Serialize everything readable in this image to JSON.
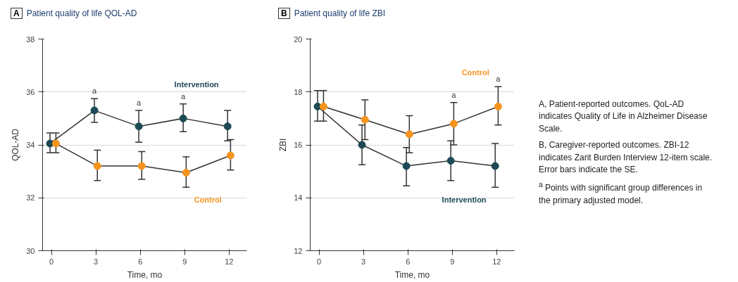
{
  "chart_data": [
    {
      "type": "line",
      "title": "Patient quality of life QOL-AD",
      "xlabel": "Time, mo",
      "ylabel": "QOL-AD",
      "xlim": [
        -0.6,
        13.2
      ],
      "xticks": [
        0,
        3,
        6,
        9,
        12
      ],
      "ylim": [
        30,
        38
      ],
      "yticks": [
        30,
        32,
        34,
        36,
        38
      ],
      "grid": "y",
      "marker": "circle",
      "annotations": [
        "A",
        {
          "text": "a",
          "x": 2.9,
          "y": 35.75
        },
        {
          "text": "a",
          "x": 5.9,
          "y": 35.3
        },
        {
          "text": "a",
          "x": 8.9,
          "y": 35.55
        }
      ],
      "series": [
        {
          "name": "Intervention",
          "color": "#1d4a55",
          "x": [
            -0.1,
            2.9,
            5.9,
            8.9,
            11.9
          ],
          "values": [
            34.05,
            35.3,
            34.7,
            35.0,
            34.7
          ],
          "errors": [
            [
              33.7,
              34.45
            ],
            [
              34.85,
              35.75
            ],
            [
              34.1,
              35.3
            ],
            [
              34.5,
              35.55
            ],
            [
              34.15,
              35.3
            ]
          ]
        },
        {
          "name": "Control",
          "color": "#f7941d",
          "x": [
            0.3,
            3.1,
            6.1,
            9.1,
            12.1
          ],
          "values": [
            34.05,
            33.2,
            33.2,
            32.95,
            33.6
          ],
          "errors": [
            [
              33.7,
              34.45
            ],
            [
              32.65,
              33.8
            ],
            [
              32.7,
              33.75
            ],
            [
              32.4,
              33.55
            ],
            [
              33.05,
              34.2
            ]
          ]
        }
      ]
    },
    {
      "type": "line",
      "title": "Patient quality of life ZBI",
      "xlabel": "Time, mo",
      "ylabel": "ZBI",
      "xlim": [
        -0.6,
        13.2
      ],
      "xticks": [
        0,
        3,
        6,
        9,
        12
      ],
      "ylim": [
        12,
        20
      ],
      "yticks": [
        12,
        14,
        16,
        18,
        20
      ],
      "grid": "y",
      "marker": "circle",
      "annotations": [
        "B",
        {
          "text": "a",
          "x": 9.1,
          "y": 17.6
        },
        {
          "text": "a",
          "x": 12.1,
          "y": 18.2
        }
      ],
      "series": [
        {
          "name": "Intervention",
          "color": "#1d4a55",
          "x": [
            -0.1,
            2.9,
            5.9,
            8.9,
            11.9
          ],
          "values": [
            17.45,
            16.0,
            15.2,
            15.4,
            15.2
          ],
          "errors": [
            [
              16.9,
              18.05
            ],
            [
              15.25,
              16.75
            ],
            [
              14.45,
              15.9
            ],
            [
              14.65,
              16.15
            ],
            [
              14.4,
              16.05
            ]
          ]
        },
        {
          "name": "Control",
          "color": "#f7941d",
          "x": [
            0.3,
            3.1,
            6.1,
            9.1,
            12.1
          ],
          "values": [
            17.45,
            16.95,
            16.4,
            16.8,
            17.45
          ],
          "errors": [
            [
              16.9,
              18.05
            ],
            [
              16.2,
              17.7
            ],
            [
              15.7,
              17.1
            ],
            [
              16.0,
              17.6
            ],
            [
              16.75,
              18.2
            ]
          ]
        }
      ]
    },
    {
      "type": "other",
      "annotations": [
        "A, Patient-reported outcomes. QoL-AD indicates Quality of Life in Alzheimer Disease Scale.",
        "B, Caregiver-reported outcomes. ZBI-12 indicates Zarit Burden Interview 12-item scale. Error bars indicate the SE.",
        "$^{a}$ Points with significant group differences in the primary adjusted model."
      ]
    }
  ]
}
